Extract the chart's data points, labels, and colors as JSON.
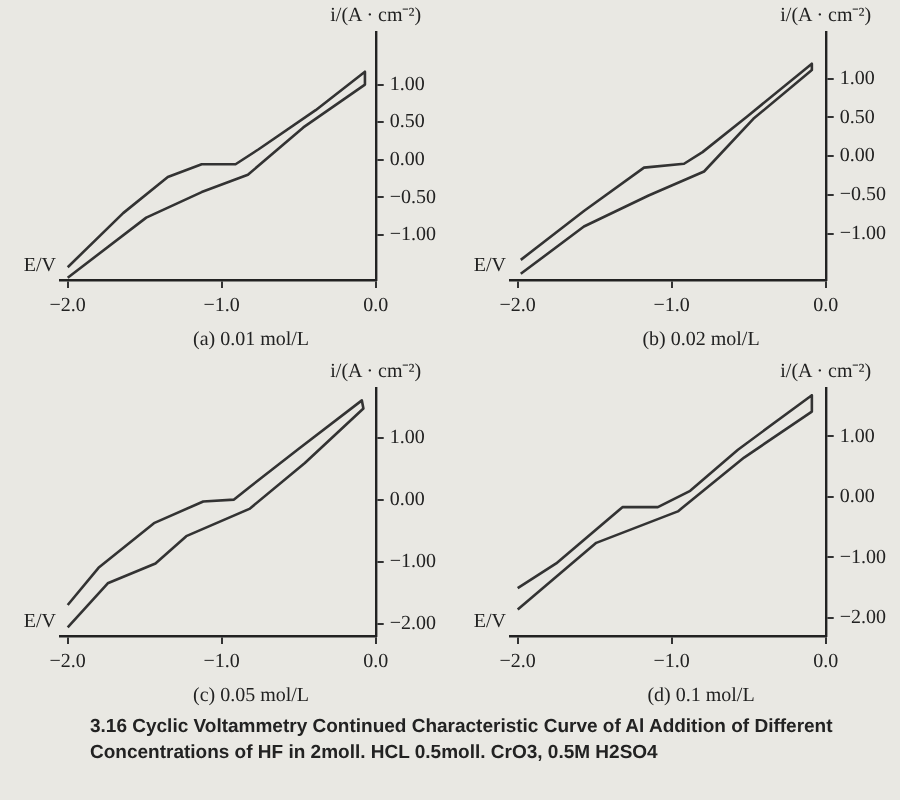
{
  "chart_data": [
    {
      "type": "line",
      "title": "(a) 0.01 mol/L",
      "xlabel": "E/V",
      "ylabel": "i/(A · cm⁻²)",
      "xlim": [
        -2.05,
        0
      ],
      "xticks": [
        {
          "value": -2,
          "label": "−2.0"
        },
        {
          "value": -1,
          "label": "−1.0"
        },
        {
          "value": 0,
          "label": "0.0"
        }
      ],
      "ylim": [
        -1.6,
        1.7
      ],
      "yticks": [
        {
          "value": 1,
          "label": "1.00"
        },
        {
          "value": 0.5,
          "label": "0.50"
        },
        {
          "value": 0,
          "label": "0.00"
        },
        {
          "value": -0.5,
          "label": "−0.50"
        },
        {
          "value": -1,
          "label": "−1.00"
        }
      ],
      "grid": false,
      "legend": false,
      "marker": "none",
      "line_style": "solid",
      "series": [
        {
          "color": "#333333",
          "x": [
            -2.0,
            -1.64,
            -1.35,
            -1.13,
            -0.91,
            -0.76,
            -0.39,
            -0.07,
            -0.07,
            -0.47,
            -0.83,
            -1.13,
            -1.49,
            -2.0
          ],
          "values": [
            -1.43,
            -0.71,
            -0.23,
            -0.06,
            -0.06,
            0.14,
            0.66,
            1.17,
            1.0,
            0.43,
            -0.2,
            -0.43,
            -0.77,
            -1.57
          ]
        }
      ]
    },
    {
      "type": "line",
      "title": "(b) 0.02 mol/L",
      "xlabel": "E/V",
      "ylabel": "i/(A · cm⁻²)",
      "xlim": [
        -2.05,
        0
      ],
      "xticks": [
        {
          "value": -2,
          "label": "−2.0"
        },
        {
          "value": -1,
          "label": "−1.0"
        },
        {
          "value": 0,
          "label": "0.0"
        }
      ],
      "ylim": [
        -1.6,
        1.6
      ],
      "yticks": [
        {
          "value": 1,
          "label": "1.00"
        },
        {
          "value": 0.5,
          "label": "0.50"
        },
        {
          "value": 0,
          "label": "0.00"
        },
        {
          "value": -0.5,
          "label": "−0.50"
        },
        {
          "value": -1,
          "label": "−1.00"
        }
      ],
      "grid": false,
      "legend": false,
      "marker": "none",
      "line_style": "solid",
      "series": [
        {
          "color": "#333333",
          "x": [
            -1.98,
            -1.57,
            -1.18,
            -0.92,
            -0.8,
            -0.51,
            -0.09,
            -0.09,
            -0.47,
            -0.79,
            -1.15,
            -1.57,
            -1.98
          ],
          "values": [
            -1.34,
            -0.71,
            -0.15,
            -0.1,
            0.05,
            0.51,
            1.19,
            1.11,
            0.48,
            -0.2,
            -0.51,
            -0.91,
            -1.52
          ]
        }
      ]
    },
    {
      "type": "line",
      "title": "(c) 0.05 mol/L",
      "xlabel": "E/V",
      "ylabel": "i/(A · cm⁻²)",
      "xlim": [
        -2.05,
        0
      ],
      "xticks": [
        {
          "value": -2,
          "label": "−2.0"
        },
        {
          "value": -1,
          "label": "−1.0"
        },
        {
          "value": 0,
          "label": "0.0"
        }
      ],
      "ylim": [
        -2.2,
        1.8
      ],
      "yticks": [
        {
          "value": 1,
          "label": "1.00"
        },
        {
          "value": 0,
          "label": "0.00"
        },
        {
          "value": -1,
          "label": "−1.00"
        },
        {
          "value": -2,
          "label": "−2.00"
        }
      ],
      "grid": false,
      "legend": false,
      "marker": "none",
      "line_style": "solid",
      "series": [
        {
          "color": "#333333",
          "x": [
            -2.0,
            -1.8,
            -1.44,
            -1.12,
            -0.92,
            -0.82,
            -0.51,
            -0.09,
            -0.08,
            -0.46,
            -0.82,
            -1.23,
            -1.43,
            -1.74,
            -2.0
          ],
          "values": [
            -1.7,
            -1.1,
            -0.38,
            -0.03,
            0,
            0.2,
            0.8,
            1.6,
            1.47,
            0.59,
            -0.15,
            -0.59,
            -1.03,
            -1.35,
            -2.06
          ]
        }
      ]
    },
    {
      "type": "line",
      "title": "(d) 0.1 mol/L",
      "xlabel": "E/V",
      "ylabel": "i/(A · cm⁻²)",
      "xlim": [
        -2.05,
        0
      ],
      "xticks": [
        {
          "value": -2,
          "label": "−2.0"
        },
        {
          "value": -1,
          "label": "−1.0"
        },
        {
          "value": 0,
          "label": "0.0"
        }
      ],
      "ylim": [
        -2.3,
        1.8
      ],
      "yticks": [
        {
          "value": 1,
          "label": "1.00"
        },
        {
          "value": 0,
          "label": "0.00"
        },
        {
          "value": -1,
          "label": "−1.00"
        },
        {
          "value": -2,
          "label": "−2.00"
        }
      ],
      "grid": false,
      "legend": false,
      "marker": "none",
      "line_style": "solid",
      "annotations": [
        "3.16 Cyclic Voltammetry Continued Characteristic Curve of Al Addition of Different Concentrations of HF in 2moll. HCL 0.5moll. CrO3, 0.5M H2SO4"
      ],
      "series": [
        {
          "color": "#333333",
          "x": [
            -2.0,
            -1.75,
            -1.32,
            -1.09,
            -0.88,
            -0.57,
            -0.09,
            -0.09,
            -0.53,
            -0.96,
            -1.49,
            -2.0
          ],
          "values": [
            -1.51,
            -1.1,
            -0.17,
            -0.17,
            0.1,
            0.78,
            1.68,
            1.41,
            0.65,
            -0.24,
            -0.76,
            -1.86
          ]
        }
      ]
    }
  ]
}
